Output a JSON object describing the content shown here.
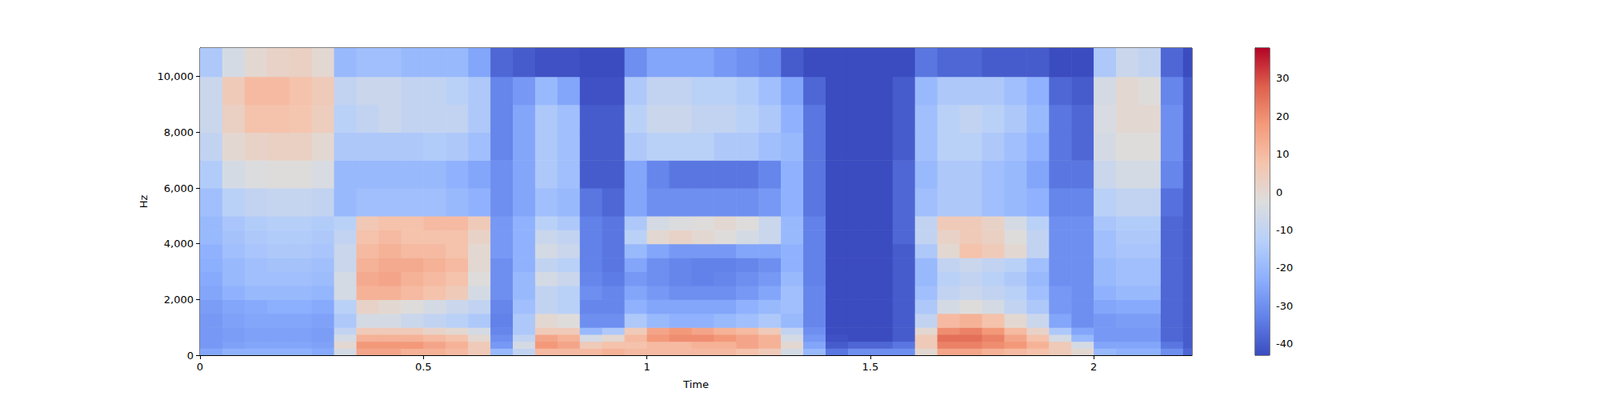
{
  "chart_data": {
    "type": "spectrogram",
    "x_label": "Time",
    "y_label": "Hz",
    "xlim": [
      0,
      2.22
    ],
    "xticks": [
      0,
      0.5,
      1,
      1.5,
      2
    ],
    "ylim": [
      0,
      11025
    ],
    "yticks": [
      0,
      2000,
      4000,
      6000,
      8000,
      10000
    ],
    "time_edges": [
      0,
      0.05,
      0.1,
      0.15,
      0.2,
      0.25,
      0.3,
      0.35,
      0.4,
      0.45,
      0.5,
      0.55,
      0.6,
      0.65,
      0.7,
      0.75,
      0.8,
      0.85,
      0.9,
      0.95,
      1.0,
      1.05,
      1.1,
      1.15,
      1.2,
      1.25,
      1.3,
      1.35,
      1.4,
      1.45,
      1.5,
      1.55,
      1.6,
      1.65,
      1.7,
      1.75,
      1.8,
      1.85,
      1.9,
      1.95,
      2.0,
      2.05,
      2.1,
      2.15,
      2.2,
      2.25
    ],
    "freq_edges": [
      0,
      250,
      500,
      750,
      1000,
      1500,
      2000,
      2500,
      3000,
      3500,
      4000,
      4500,
      5000,
      6000,
      7000,
      8000,
      9000,
      10000,
      11025
    ],
    "cells": [
      [
        -25,
        -28,
        -28,
        -28,
        -28,
        -27,
        -25,
        -24,
        -23,
        -22,
        -20,
        -20,
        -18,
        -14,
        -10,
        -8,
        -8,
        -15
      ],
      [
        -22,
        -26,
        -27,
        -27,
        -26,
        -25,
        -22,
        -20,
        -20,
        -18,
        -17,
        -16,
        -12,
        -5,
        0,
        3,
        5,
        -5
      ],
      [
        -22,
        -25,
        -26,
        -26,
        -25,
        -24,
        -20,
        -18,
        -18,
        -16,
        -15,
        -14,
        -10,
        -3,
        2,
        8,
        10,
        0
      ],
      [
        -22,
        -25,
        -26,
        -26,
        -25,
        -23,
        -20,
        -18,
        -17,
        -15,
        -14,
        -13,
        -9,
        -2,
        3,
        8,
        10,
        2
      ],
      [
        -22,
        -25,
        -26,
        -26,
        -25,
        -23,
        -20,
        -18,
        -17,
        -15,
        -14,
        -13,
        -9,
        -2,
        3,
        7,
        8,
        3
      ],
      [
        -24,
        -26,
        -27,
        -27,
        -26,
        -24,
        -21,
        -19,
        -18,
        -16,
        -15,
        -14,
        -10,
        -4,
        0,
        4,
        5,
        0
      ],
      [
        -5,
        0,
        -5,
        -10,
        -15,
        -12,
        -5,
        -5,
        -8,
        -8,
        -10,
        -12,
        -20,
        -20,
        -15,
        -12,
        -10,
        -20
      ],
      [
        15,
        18,
        12,
        5,
        -5,
        2,
        12,
        14,
        12,
        10,
        8,
        6,
        -18,
        -20,
        -15,
        -10,
        -8,
        -18
      ],
      [
        15,
        18,
        12,
        5,
        -5,
        0,
        12,
        15,
        14,
        12,
        10,
        8,
        -18,
        -20,
        -15,
        -8,
        -8,
        -18
      ],
      [
        12,
        18,
        12,
        5,
        -8,
        -2,
        10,
        12,
        14,
        10,
        8,
        8,
        -18,
        -20,
        -15,
        -10,
        -10,
        -20
      ],
      [
        12,
        15,
        10,
        2,
        -10,
        -5,
        8,
        10,
        12,
        10,
        8,
        10,
        -18,
        -20,
        -14,
        -10,
        -10,
        -20
      ],
      [
        10,
        12,
        8,
        0,
        -12,
        -8,
        5,
        8,
        10,
        8,
        8,
        10,
        -20,
        -22,
        -15,
        -10,
        -12,
        -20
      ],
      [
        5,
        5,
        0,
        -5,
        -15,
        -10,
        -5,
        -2,
        0,
        0,
        2,
        5,
        -22,
        -25,
        -18,
        -15,
        -15,
        -25
      ],
      [
        -20,
        -28,
        -30,
        -32,
        -33,
        -32,
        -30,
        -30,
        -30,
        -28,
        -28,
        -28,
        -30,
        -30,
        -32,
        -32,
        -32,
        -38
      ],
      [
        -10,
        -5,
        -10,
        -15,
        -15,
        -18,
        -20,
        -20,
        -22,
        -22,
        -22,
        -22,
        -25,
        -25,
        -25,
        -25,
        -28,
        -40
      ],
      [
        10,
        18,
        15,
        5,
        0,
        -10,
        -10,
        -5,
        -10,
        -5,
        -8,
        -12,
        -18,
        -15,
        -15,
        -15,
        -20,
        -42
      ],
      [
        10,
        15,
        12,
        5,
        -2,
        -12,
        -12,
        -8,
        -12,
        -8,
        -10,
        -15,
        -20,
        -18,
        -18,
        -18,
        -25,
        -42
      ],
      [
        10,
        5,
        -5,
        -20,
        -30,
        -32,
        -30,
        -32,
        -33,
        -33,
        -33,
        -33,
        -35,
        -40,
        -40,
        -40,
        -42,
        -43
      ],
      [
        12,
        8,
        0,
        -15,
        -30,
        -32,
        -32,
        -34,
        -35,
        -35,
        -35,
        -35,
        -38,
        -40,
        -40,
        -40,
        -42,
        -43
      ],
      [
        10,
        8,
        10,
        5,
        -15,
        -22,
        -25,
        -28,
        -25,
        -20,
        -12,
        -15,
        -25,
        -25,
        -15,
        -12,
        -15,
        -30
      ],
      [
        10,
        10,
        18,
        15,
        -20,
        -25,
        -28,
        -30,
        -30,
        -25,
        0,
        -5,
        -30,
        -32,
        -12,
        -8,
        -10,
        -25
      ],
      [
        10,
        10,
        20,
        18,
        -22,
        -25,
        -30,
        -32,
        -32,
        -28,
        2,
        -3,
        -30,
        -35,
        -12,
        -8,
        -10,
        -25
      ],
      [
        10,
        12,
        20,
        15,
        -22,
        -25,
        -30,
        -33,
        -33,
        -28,
        0,
        -2,
        -30,
        -35,
        -12,
        -10,
        -12,
        -25
      ],
      [
        10,
        12,
        18,
        12,
        -20,
        -25,
        -30,
        -32,
        -33,
        -28,
        -2,
        0,
        -30,
        -35,
        -15,
        -10,
        -12,
        -28
      ],
      [
        8,
        15,
        15,
        10,
        -18,
        -22,
        -28,
        -30,
        -32,
        -25,
        -5,
        -2,
        -30,
        -35,
        -15,
        -12,
        -14,
        -30
      ],
      [
        5,
        12,
        12,
        5,
        -15,
        -20,
        -25,
        -28,
        -30,
        -25,
        -8,
        -8,
        -28,
        -32,
        -18,
        -15,
        -18,
        -32
      ],
      [
        -5,
        0,
        -5,
        -10,
        -20,
        -18,
        -18,
        -20,
        -22,
        -22,
        -20,
        -20,
        -22,
        -22,
        -20,
        -22,
        -25,
        -40
      ],
      [
        -20,
        -25,
        -28,
        -30,
        -32,
        -32,
        -32,
        -33,
        -33,
        -33,
        -33,
        -33,
        -35,
        -35,
        -35,
        -35,
        -38,
        -43
      ],
      [
        -35,
        -40,
        -42,
        -43,
        -43,
        -43,
        -43,
        -43,
        -43,
        -43,
        -43,
        -43,
        -43,
        -43,
        -43,
        -43,
        -43,
        -43
      ],
      [
        -30,
        -38,
        -43,
        -43,
        -43,
        -43,
        -43,
        -43,
        -43,
        -43,
        -43,
        -43,
        -43,
        -43,
        -43,
        -43,
        -43,
        -43
      ],
      [
        -30,
        -38,
        -43,
        -43,
        -43,
        -43,
        -43,
        -43,
        -43,
        -43,
        -43,
        -43,
        -43,
        -43,
        -43,
        -43,
        -43,
        -43
      ],
      [
        -30,
        -35,
        -40,
        -40,
        -40,
        -40,
        -40,
        -40,
        -40,
        -40,
        -38,
        -38,
        -38,
        -38,
        -40,
        -40,
        -40,
        -43
      ],
      [
        0,
        5,
        5,
        0,
        -10,
        -15,
        -18,
        -20,
        -20,
        -15,
        -10,
        -10,
        -18,
        -20,
        -18,
        -18,
        -20,
        -35
      ],
      [
        15,
        22,
        25,
        20,
        10,
        -5,
        -10,
        -12,
        -10,
        0,
        2,
        5,
        -15,
        -15,
        -12,
        -12,
        -15,
        -38
      ],
      [
        15,
        22,
        25,
        22,
        12,
        -2,
        -8,
        -10,
        -8,
        8,
        5,
        5,
        -15,
        -15,
        -12,
        -10,
        -15,
        -38
      ],
      [
        12,
        20,
        22,
        18,
        8,
        -5,
        -10,
        -12,
        -10,
        5,
        3,
        2,
        -18,
        -18,
        -15,
        -12,
        -15,
        -40
      ],
      [
        10,
        18,
        15,
        10,
        0,
        -10,
        -12,
        -15,
        -12,
        0,
        -2,
        -5,
        -20,
        -20,
        -18,
        -15,
        -18,
        -40
      ],
      [
        8,
        12,
        8,
        2,
        -8,
        -15,
        -18,
        -20,
        -18,
        -10,
        -10,
        -12,
        -22,
        -25,
        -22,
        -20,
        -22,
        -40
      ],
      [
        5,
        5,
        -5,
        -15,
        -25,
        -28,
        -28,
        -30,
        -30,
        -30,
        -30,
        -30,
        -32,
        -35,
        -35,
        -35,
        -38,
        -43
      ],
      [
        0,
        -5,
        -20,
        -25,
        -30,
        -30,
        -30,
        -30,
        -30,
        -30,
        -30,
        -30,
        -32,
        -35,
        -38,
        -38,
        -40,
        -43
      ],
      [
        -20,
        -25,
        -28,
        -28,
        -28,
        -25,
        -22,
        -20,
        -20,
        -18,
        -18,
        -16,
        -12,
        -8,
        -5,
        -4,
        -5,
        -15
      ],
      [
        -22,
        -25,
        -28,
        -28,
        -27,
        -24,
        -20,
        -18,
        -18,
        -16,
        -15,
        -14,
        -10,
        -5,
        -2,
        0,
        0,
        -8
      ],
      [
        -22,
        -25,
        -28,
        -28,
        -27,
        -24,
        -20,
        -18,
        -18,
        -16,
        -15,
        -14,
        -10,
        -5,
        -2,
        0,
        -2,
        -10
      ],
      [
        -30,
        -35,
        -38,
        -38,
        -38,
        -38,
        -38,
        -38,
        -38,
        -38,
        -38,
        -38,
        -36,
        -32,
        -30,
        -30,
        -32,
        -38
      ],
      [
        -38,
        -40,
        -40,
        -40,
        -40,
        -40,
        -40,
        -40,
        -40,
        -40,
        -40,
        -40,
        -40,
        -40,
        -40,
        -40,
        -40,
        -43
      ]
    ],
    "colorbar": {
      "range": [
        -43,
        38
      ],
      "ticks": [
        -40,
        -30,
        -20,
        -10,
        0,
        10,
        20,
        30
      ]
    }
  }
}
